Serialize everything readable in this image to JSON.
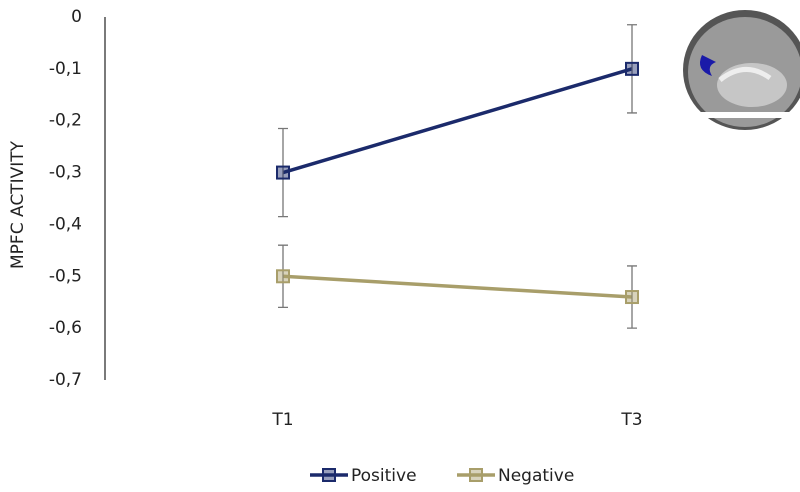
{
  "chart_data": {
    "type": "line",
    "y_label": "MPFC ACTIVITY",
    "categories": [
      "T1",
      "T3"
    ],
    "series": [
      {
        "name": "Positive",
        "color": "#1b2a6b",
        "values": [
          -0.3,
          -0.1
        ],
        "errors": [
          0.085,
          0.085
        ]
      },
      {
        "name": "Negative",
        "color": "#a89e6a",
        "values": [
          -0.5,
          -0.54
        ],
        "errors": [
          0.06,
          0.06
        ]
      }
    ],
    "ylim": [
      -0.7,
      0
    ],
    "yticks": [
      {
        "value": -0.7,
        "label": "-0,7"
      },
      {
        "value": -0.6,
        "label": "-0,6"
      },
      {
        "value": -0.5,
        "label": "-0,5"
      },
      {
        "value": -0.4,
        "label": "-0,4"
      },
      {
        "value": -0.3,
        "label": "-0,3"
      },
      {
        "value": -0.2,
        "label": "-0,2"
      },
      {
        "value": -0.1,
        "label": "-0,1"
      },
      0
    ],
    "legend": "bottom"
  }
}
